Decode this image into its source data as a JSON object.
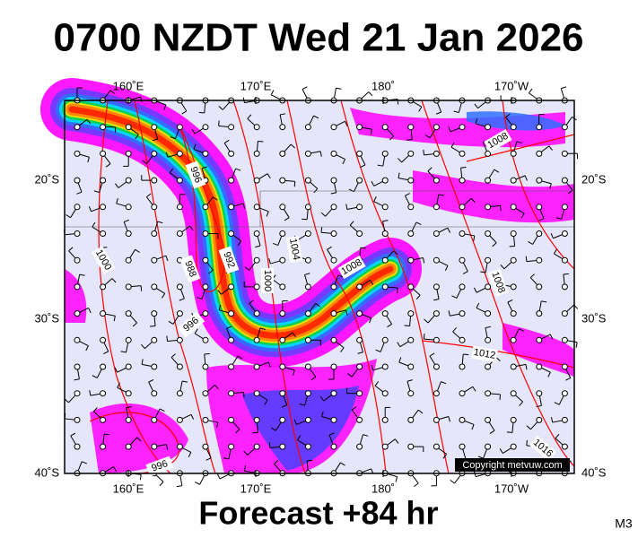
{
  "header": {
    "title": "0700 NZDT Wed 21 Jan 2026"
  },
  "map": {
    "lon_labels": [
      "160˚E",
      "170˚E",
      "180˚",
      "170˚W"
    ],
    "lat_labels": [
      "20˚S",
      "30˚S",
      "40˚S"
    ],
    "isobar_labels": [
      "996",
      "992",
      "988",
      "1000",
      "1004",
      "1000",
      "996",
      "1008",
      "1008",
      "1008",
      "1012",
      "1016",
      "996"
    ],
    "copyright": "Copyright metvuw.com"
  },
  "footer": {
    "forecast": "Forecast +84 hr",
    "model": "M3"
  }
}
